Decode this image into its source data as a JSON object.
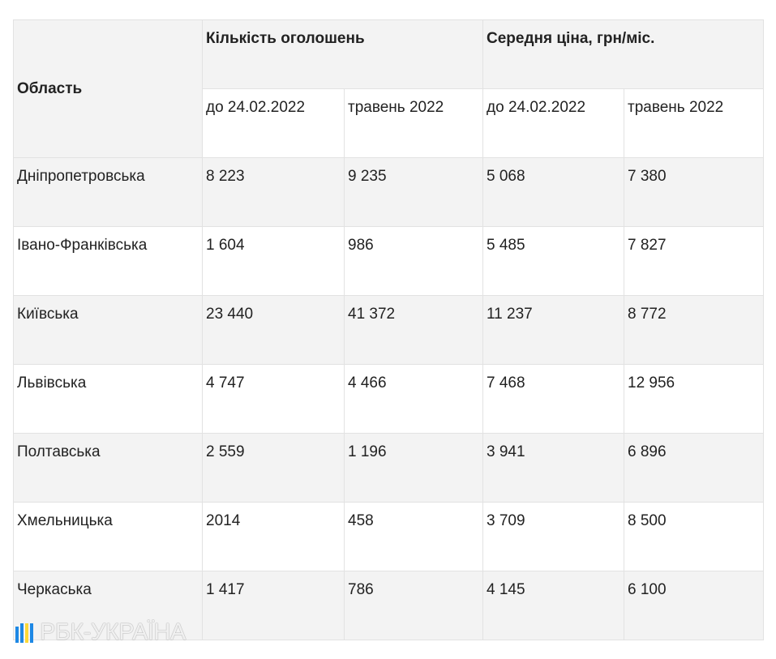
{
  "table": {
    "header": {
      "region": "Область",
      "group1": "Кількість оголошень",
      "group2": "Середня ціна, грн/міс.",
      "sub": [
        "до 24.02.2022",
        "травень 2022",
        "до 24.02.2022",
        "травень 2022"
      ]
    },
    "rows": [
      [
        "Дніпропетровська",
        "8 223",
        "9 235",
        "5 068",
        "7 380"
      ],
      [
        "Івано-Франківська",
        "1 604",
        "986",
        "5 485",
        "7 827"
      ],
      [
        "Київська",
        "23 440",
        "41 372",
        "11 237",
        "8 772"
      ],
      [
        "Львівська",
        "4 747",
        "4 466",
        "7 468",
        "12 956"
      ],
      [
        "Полтавська",
        "2 559",
        "1 196",
        "3 941",
        "6 896"
      ],
      [
        "Хмельницька",
        "2014",
        "458",
        "3 709",
        "8 500"
      ],
      [
        "Черкаська",
        "1 417",
        "786",
        "4 145",
        "6 100"
      ]
    ]
  },
  "watermark": "РБК-УКРАЇНА"
}
